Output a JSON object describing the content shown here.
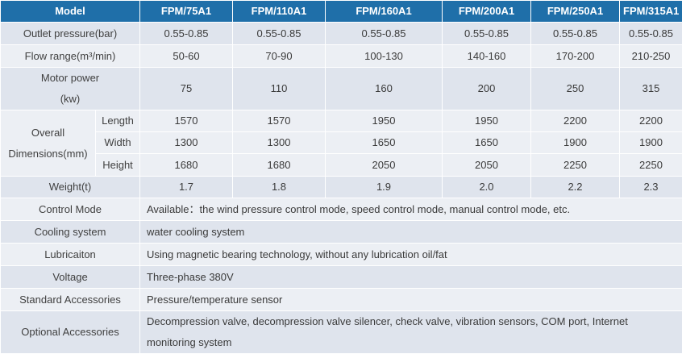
{
  "header": {
    "model_label": "Model",
    "models": [
      "FPM/75A1",
      "FPM/110A1",
      "FPM/160A1",
      "FPM/200A1",
      "FPM/250A1",
      "FPM/315A1"
    ]
  },
  "rows": {
    "outlet": {
      "label": "Outlet pressure(bar)",
      "values": [
        "0.55-0.85",
        "0.55-0.85",
        "0.55-0.85",
        "0.55-0.85",
        "0.55-0.85",
        "0.55-0.85"
      ]
    },
    "flow": {
      "label": "Flow range(m³/min)",
      "values": [
        "50-60",
        "70-90",
        "100-130",
        "140-160",
        "170-200",
        "210-250"
      ]
    },
    "motor": {
      "label_line1": "Motor power",
      "label_line2": "(kw)",
      "values": [
        "75",
        "110",
        "160",
        "200",
        "250",
        "315"
      ]
    },
    "dimensions": {
      "label_line1": "Overall",
      "label_line2": "Dimensions(mm)",
      "length": {
        "label": "Length",
        "values": [
          "1570",
          "1570",
          "1950",
          "1950",
          "2200",
          "2200"
        ]
      },
      "width": {
        "label": "Width",
        "values": [
          "1300",
          "1300",
          "1650",
          "1650",
          "1900",
          "1900"
        ]
      },
      "height": {
        "label": "Height",
        "values": [
          "1680",
          "1680",
          "2050",
          "2050",
          "2250",
          "2250"
        ]
      }
    },
    "weight": {
      "label": "Weight(t)",
      "values": [
        "1.7",
        "1.8",
        "1.9",
        "2.0",
        "2.2",
        "2.3"
      ]
    },
    "control": {
      "label": "Control Mode",
      "value": "Available：the wind pressure control mode, speed control mode, manual control mode, etc."
    },
    "cooling": {
      "label": "Cooling system",
      "value": "water cooling system"
    },
    "lubrication": {
      "label": "Lubricaiton",
      "value": "Using magnetic bearing technology, without any lubrication oil/fat"
    },
    "voltage": {
      "label": "Voltage",
      "value": "Three-phase 380V"
    },
    "standard": {
      "label": "Standard Accessories",
      "value": "Pressure/temperature sensor"
    },
    "optional": {
      "label": "Optional Accessories",
      "value_line1": "Decompression valve, decompression valve silencer, check valve, vibration sensors, COM port, Internet",
      "value_line2": "monitoring system"
    }
  }
}
